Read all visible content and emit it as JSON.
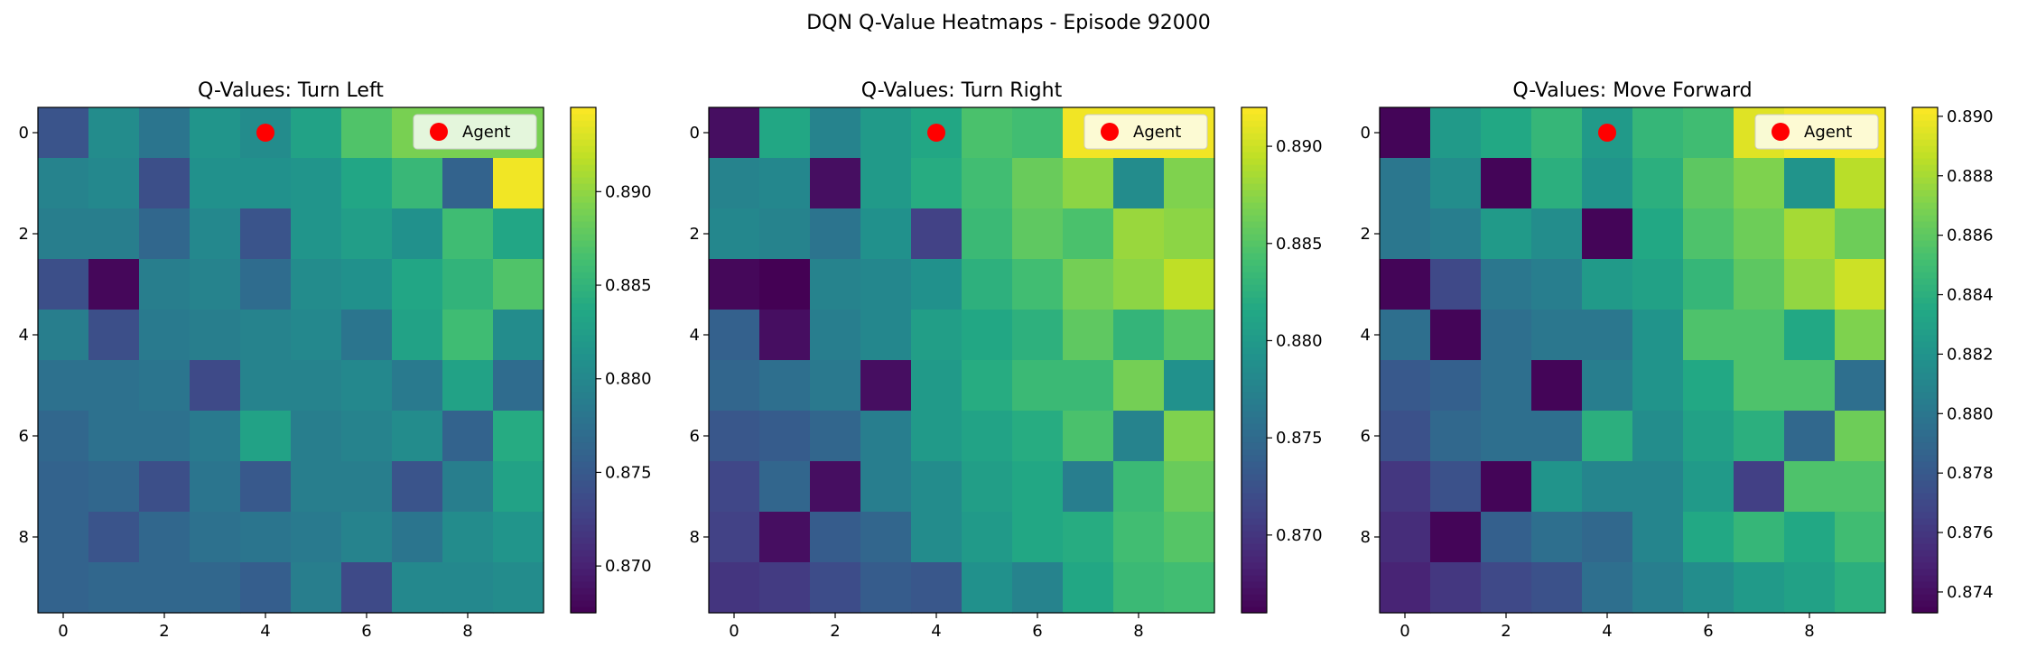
{
  "figure": {
    "title": "DQN Q-Value Heatmaps - Episode 92000"
  },
  "colors": {
    "agent_marker": "#ff0000",
    "legend_bg": "#ffffff",
    "colormap": "viridis"
  },
  "chart_data": [
    {
      "type": "heatmap",
      "title": "Q-Values: Turn Left",
      "x_ticks": [
        0,
        2,
        4,
        6,
        8
      ],
      "y_ticks": [
        0,
        2,
        4,
        6,
        8
      ],
      "colorbar": {
        "vmin": 0.8675,
        "vmax": 0.8945,
        "ticks": [
          0.87,
          0.875,
          0.88,
          0.885,
          0.89
        ],
        "tick_labels": [
          "0.870",
          "0.875",
          "0.880",
          "0.885",
          "0.890"
        ]
      },
      "legend": {
        "label": "Agent",
        "placement": "upper right"
      },
      "agent": {
        "x": 4,
        "y": 0
      },
      "values": [
        [
          0.8745,
          0.8805,
          0.878,
          0.8815,
          0.8805,
          0.883,
          0.887,
          0.889,
          0.889,
          0.889
        ],
        [
          0.8795,
          0.88,
          0.874,
          0.881,
          0.881,
          0.8815,
          0.8835,
          0.8855,
          0.876,
          0.894
        ],
        [
          0.879,
          0.879,
          0.8765,
          0.88,
          0.8745,
          0.8815,
          0.8825,
          0.881,
          0.886,
          0.8835
        ],
        [
          0.874,
          0.868,
          0.879,
          0.8795,
          0.877,
          0.8805,
          0.881,
          0.8835,
          0.885,
          0.887
        ],
        [
          0.879,
          0.874,
          0.8785,
          0.879,
          0.8795,
          0.88,
          0.878,
          0.883,
          0.886,
          0.8805
        ],
        [
          0.8775,
          0.8775,
          0.878,
          0.8735,
          0.8795,
          0.8795,
          0.88,
          0.8785,
          0.883,
          0.877
        ],
        [
          0.8765,
          0.8775,
          0.8775,
          0.8785,
          0.883,
          0.879,
          0.8795,
          0.8805,
          0.876,
          0.884
        ],
        [
          0.876,
          0.8765,
          0.874,
          0.878,
          0.875,
          0.879,
          0.879,
          0.8745,
          0.879,
          0.883
        ],
        [
          0.876,
          0.8745,
          0.8765,
          0.8775,
          0.878,
          0.8785,
          0.8795,
          0.878,
          0.8805,
          0.8815
        ],
        [
          0.876,
          0.8765,
          0.8765,
          0.8765,
          0.8755,
          0.879,
          0.8735,
          0.88,
          0.88,
          0.8805
        ]
      ]
    },
    {
      "type": "heatmap",
      "title": "Q-Values: Turn Right",
      "x_ticks": [
        0,
        2,
        4,
        6,
        8
      ],
      "y_ticks": [
        0,
        2,
        4,
        6,
        8
      ],
      "colorbar": {
        "vmin": 0.866,
        "vmax": 0.892,
        "ticks": [
          0.87,
          0.875,
          0.88,
          0.885,
          0.89
        ],
        "tick_labels": [
          "0.870",
          "0.875",
          "0.880",
          "0.885",
          "0.890"
        ]
      },
      "legend": {
        "label": "Agent",
        "placement": "upper right"
      },
      "agent": {
        "x": 4,
        "y": 0
      },
      "values": [
        [
          0.867,
          0.8815,
          0.8775,
          0.88,
          0.8815,
          0.8845,
          0.884,
          0.8915,
          0.8915,
          0.8915
        ],
        [
          0.8775,
          0.878,
          0.867,
          0.88,
          0.882,
          0.884,
          0.886,
          0.8875,
          0.8785,
          0.887
        ],
        [
          0.878,
          0.8775,
          0.876,
          0.879,
          0.871,
          0.8835,
          0.8855,
          0.8845,
          0.888,
          0.8875
        ],
        [
          0.8665,
          0.866,
          0.8775,
          0.878,
          0.879,
          0.8825,
          0.884,
          0.8865,
          0.8875,
          0.8895
        ],
        [
          0.874,
          0.867,
          0.877,
          0.878,
          0.8805,
          0.8815,
          0.8825,
          0.8855,
          0.883,
          0.885
        ],
        [
          0.8745,
          0.8755,
          0.8765,
          0.867,
          0.88,
          0.882,
          0.8835,
          0.8835,
          0.8865,
          0.879
        ],
        [
          0.873,
          0.8735,
          0.8745,
          0.877,
          0.88,
          0.881,
          0.882,
          0.8845,
          0.8775,
          0.887
        ],
        [
          0.8715,
          0.8745,
          0.867,
          0.877,
          0.8785,
          0.8805,
          0.8815,
          0.877,
          0.8835,
          0.886
        ],
        [
          0.871,
          0.867,
          0.8735,
          0.8745,
          0.8785,
          0.88,
          0.8815,
          0.882,
          0.884,
          0.885
        ],
        [
          0.87,
          0.8705,
          0.872,
          0.8735,
          0.873,
          0.879,
          0.8775,
          0.8815,
          0.8835,
          0.884
        ]
      ]
    },
    {
      "type": "heatmap",
      "title": "Q-Values: Move Forward",
      "x_ticks": [
        0,
        2,
        4,
        6,
        8
      ],
      "y_ticks": [
        0,
        2,
        4,
        6,
        8
      ],
      "colorbar": {
        "vmin": 0.8733,
        "vmax": 0.8903,
        "ticks": [
          0.874,
          0.876,
          0.878,
          0.88,
          0.882,
          0.884,
          0.886,
          0.888,
          0.89
        ],
        "tick_labels": [
          "0.874",
          "0.876",
          "0.878",
          "0.880",
          "0.882",
          "0.884",
          "0.886",
          "0.888",
          "0.890"
        ]
      },
      "legend": {
        "label": "Agent",
        "placement": "upper right"
      },
      "agent": {
        "x": 4,
        "y": 0
      },
      "values": [
        [
          0.8735,
          0.8825,
          0.8835,
          0.8845,
          0.8825,
          0.8845,
          0.885,
          0.8895,
          0.89,
          0.89
        ],
        [
          0.88,
          0.8815,
          0.8735,
          0.884,
          0.882,
          0.884,
          0.886,
          0.887,
          0.882,
          0.8885
        ],
        [
          0.88,
          0.8805,
          0.8825,
          0.8815,
          0.8735,
          0.8835,
          0.8855,
          0.8865,
          0.888,
          0.8865
        ],
        [
          0.8735,
          0.877,
          0.88,
          0.8805,
          0.8825,
          0.883,
          0.8845,
          0.886,
          0.8875,
          0.889
        ],
        [
          0.8795,
          0.8735,
          0.8795,
          0.88,
          0.88,
          0.882,
          0.8855,
          0.8855,
          0.8835,
          0.887
        ],
        [
          0.878,
          0.8785,
          0.8795,
          0.8735,
          0.8805,
          0.882,
          0.8835,
          0.8855,
          0.8855,
          0.8795
        ],
        [
          0.8775,
          0.879,
          0.8795,
          0.8795,
          0.884,
          0.8815,
          0.883,
          0.884,
          0.879,
          0.8865
        ],
        [
          0.876,
          0.8775,
          0.8735,
          0.882,
          0.881,
          0.881,
          0.8825,
          0.8765,
          0.8855,
          0.8855
        ],
        [
          0.8755,
          0.8735,
          0.8785,
          0.8795,
          0.879,
          0.881,
          0.8835,
          0.8845,
          0.8835,
          0.885
        ],
        [
          0.875,
          0.876,
          0.877,
          0.8775,
          0.8795,
          0.8805,
          0.8815,
          0.8825,
          0.883,
          0.884
        ]
      ]
    }
  ]
}
